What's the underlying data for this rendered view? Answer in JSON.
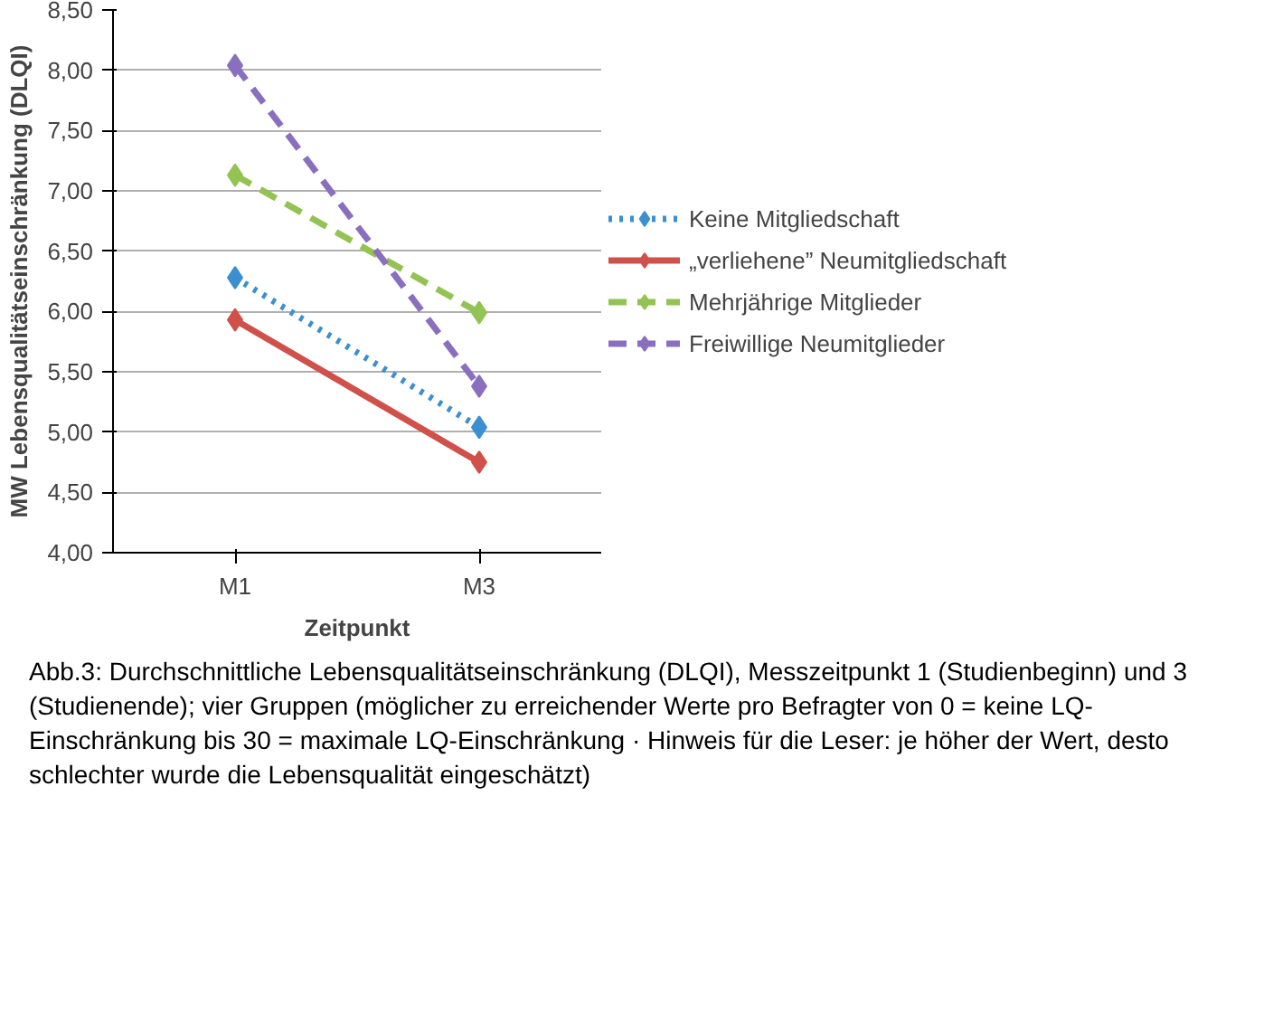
{
  "chart_data": {
    "type": "line",
    "ylabel": "MW Lebensqualitätseinschränkung (DLQI)",
    "xlabel": "Zeitpunkt",
    "categories": [
      "M1",
      "M3"
    ],
    "series": [
      {
        "name": "Keine Mitgliedschaft",
        "color": "#3b8fd0",
        "values": [
          6.28,
          5.04
        ],
        "line_style": "dotted"
      },
      {
        "name": "„verliehene” Neumitgliedschaft",
        "color": "#d0504a",
        "values": [
          5.93,
          4.75
        ],
        "line_style": "solid"
      },
      {
        "name": "Mehrjährige Mitglieder",
        "color": "#92c353",
        "values": [
          7.13,
          5.99
        ],
        "line_style": "dashed"
      },
      {
        "name": "Freiwillige Neumitglieder",
        "color": "#8a6fbf",
        "values": [
          8.04,
          5.38
        ],
        "line_style": "dashed"
      }
    ],
    "ylim": [
      4.0,
      8.5
    ],
    "yticks": [
      {
        "value": 4.0,
        "label": "4,00"
      },
      {
        "value": 4.5,
        "label": "4,50"
      },
      {
        "value": 5.0,
        "label": "5,00"
      },
      {
        "value": 5.5,
        "label": "5,50"
      },
      {
        "value": 6.0,
        "label": "6,00"
      },
      {
        "value": 6.5,
        "label": "6,50"
      },
      {
        "value": 7.0,
        "label": "7,00"
      },
      {
        "value": 7.5,
        "label": "7,50"
      },
      {
        "value": 8.0,
        "label": "8,00"
      },
      {
        "value": 8.5,
        "label": "8,50"
      }
    ],
    "grid": "y",
    "legend": "right",
    "marker": "diamond",
    "annotations": [
      "Abb.3: Durchschnittliche Lebensqualitätseinschränkung (DLQI), Messzeitpunkt 1 (Studienbeginn) und 3 (Studienende); vier Gruppen (möglicher zu erreichender Werte pro Befragter von 0 = keine LQ-Einschränkung bis 30 = maximale LQ-Einschränkung · Hinweis für die Leser: je höher der Wert, desto schlechter wurde die Lebensqualität eingeschätzt)"
    ]
  }
}
